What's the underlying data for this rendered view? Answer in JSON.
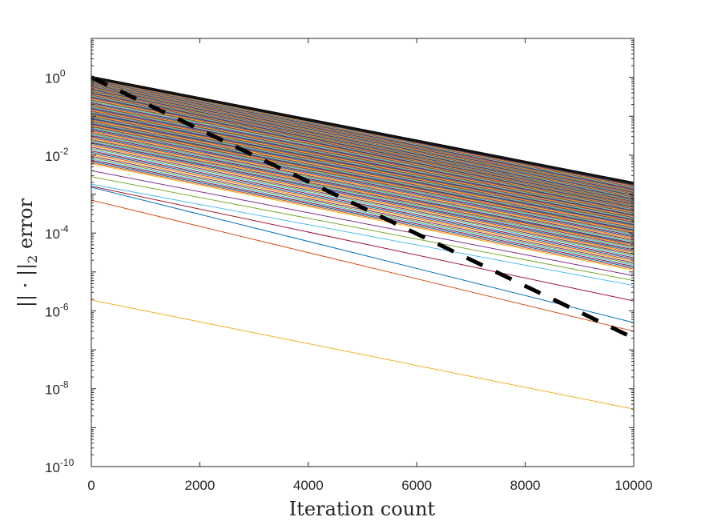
{
  "chart_data": {
    "type": "line",
    "title": "",
    "xlabel": "Iteration count",
    "ylabel": "|| · ||",
    "ylabel_subscript": "2",
    "ylabel_suffix": " error",
    "xlim": [
      0,
      10000
    ],
    "ylim": [
      1e-10,
      10
    ],
    "yscale": "log",
    "grid": false,
    "legend": "none",
    "x_ticks": [
      0,
      2000,
      4000,
      6000,
      8000,
      10000
    ],
    "x_tick_labels": [
      "0",
      "2000",
      "4000",
      "6000",
      "8000",
      "10000"
    ],
    "y_ticks": [
      1.0,
      0.01,
      0.0001,
      1e-06,
      1e-08,
      1e-10
    ],
    "y_tick_labels": [
      {
        "base": "10",
        "exp": "0"
      },
      {
        "base": "10",
        "exp": "-2"
      },
      {
        "base": "10",
        "exp": "-4"
      },
      {
        "base": "10",
        "exp": "-6"
      },
      {
        "base": "10",
        "exp": "-8"
      },
      {
        "base": "10",
        "exp": "-10"
      }
    ],
    "series_count": 150,
    "series_note": "each line: ||·||2 error from start value at x=0 to end value at x=10000",
    "series": [
      {
        "start": 1.0,
        "end": 0.0019
      },
      {
        "start": 0.95,
        "end": 0.0018
      },
      {
        "start": 0.9,
        "end": 0.0016
      },
      {
        "start": 0.85,
        "end": 0.0014
      },
      {
        "start": 0.8,
        "end": 0.0012
      },
      {
        "start": 0.75,
        "end": 0.0011
      },
      {
        "start": 0.7,
        "end": 0.001
      },
      {
        "start": 0.65,
        "end": 0.0009
      },
      {
        "start": 0.6,
        "end": 0.0008
      },
      {
        "start": 0.55,
        "end": 0.0007
      },
      {
        "start": 0.5,
        "end": 0.00065
      },
      {
        "start": 0.45,
        "end": 0.0006
      },
      {
        "start": 0.4,
        "end": 0.00055
      },
      {
        "start": 0.35,
        "end": 0.0005
      },
      {
        "start": 0.3,
        "end": 0.00045
      },
      {
        "start": 0.25,
        "end": 0.0004
      },
      {
        "start": 0.2,
        "end": 0.00035
      },
      {
        "start": 0.17,
        "end": 0.0003
      },
      {
        "start": 0.14,
        "end": 0.00026
      },
      {
        "start": 0.12,
        "end": 0.00022
      },
      {
        "start": 0.1,
        "end": 0.00019
      },
      {
        "start": 0.085,
        "end": 0.00016
      },
      {
        "start": 0.07,
        "end": 0.00013
      },
      {
        "start": 0.06,
        "end": 0.00011
      },
      {
        "start": 0.05,
        "end": 9e-05
      },
      {
        "start": 0.04,
        "end": 7e-05
      },
      {
        "start": 0.032,
        "end": 5.5e-05
      },
      {
        "start": 0.025,
        "end": 4.5e-05
      },
      {
        "start": 0.02,
        "end": 3.5e-05
      },
      {
        "start": 0.015,
        "end": 2.7e-05
      },
      {
        "start": 0.011,
        "end": 2e-05
      },
      {
        "start": 0.008,
        "end": 1.5e-05
      },
      {
        "start": 0.006,
        "end": 1.1e-05
      },
      {
        "start": 0.004,
        "end": 8e-06
      },
      {
        "start": 0.0028,
        "end": 6e-06
      },
      {
        "start": 0.0018,
        "end": 4.5e-06
      },
      {
        "start": 0.0016,
        "end": 1.8e-06
      },
      {
        "start": 0.0015,
        "end": 5e-07
      },
      {
        "start": 0.0007,
        "end": 3e-07
      },
      {
        "start": 1.9e-06,
        "end": 3e-09
      }
    ],
    "reference_line": {
      "style": "dashed",
      "color": "#000000",
      "start": 1.0,
      "end": 2e-07
    }
  }
}
